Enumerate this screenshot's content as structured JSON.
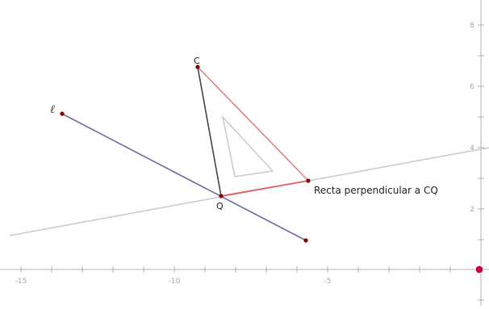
{
  "app": {
    "name": "geometry-construction-view"
  },
  "axes": {
    "x_ticks": [
      "-15",
      "-10",
      "-5"
    ],
    "y_ticks": [
      "8",
      "6",
      "4",
      "2"
    ],
    "color": "#b0b0b0"
  },
  "points": {
    "C": {
      "label": "C",
      "color": "#8b0000"
    },
    "Q": {
      "label": "Q",
      "color": "#8b0000"
    },
    "L": {
      "label": "ℓ",
      "color": "#8b0000"
    }
  },
  "lines": {
    "perpendicular": {
      "label": "Recta perpendicular a CQ",
      "color": "#e08080"
    },
    "l_segment": {
      "color": "#6a6aaa"
    },
    "cq_segment": {
      "color": "#444444"
    },
    "background_line": {
      "color": "#cccccc"
    },
    "triangle_hint": {
      "color": "#c8c8c8"
    }
  },
  "origin_marker": {
    "color": "#cc0044",
    "icon": "circle-marker-icon"
  }
}
